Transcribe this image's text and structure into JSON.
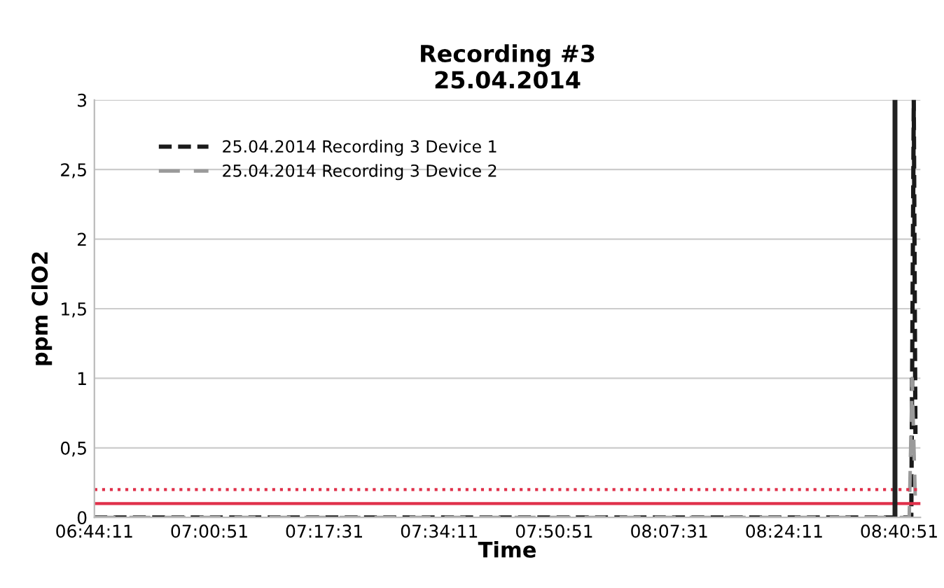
{
  "chart_data": {
    "type": "line",
    "title": "Recording #3\n25.04.2014",
    "xlabel": "Time",
    "ylabel": "ppm ClO2",
    "series": [
      {
        "name": "25.04.2014 Recording 3 Device 1",
        "color": "#1a1a1a",
        "line_style": "dashed",
        "x": [
          6.7364,
          8.71,
          8.716,
          8.72
        ],
        "values": [
          0,
          0,
          3.0,
          0.6
        ]
      },
      {
        "name": "25.04.2014 Recording 3 Device 2",
        "color": "#9a9a9a",
        "line_style": "dashed",
        "x": [
          6.7364,
          8.705,
          8.712,
          8.72
        ],
        "values": [
          0,
          0,
          1.0,
          0.1
        ]
      }
    ],
    "xlim": [
      6.7364,
      8.732
    ],
    "xticks": [
      {
        "value": 6.7364,
        "label": "06:44:11"
      },
      {
        "value": 7.0142,
        "label": "07:00:51"
      },
      {
        "value": 7.2919,
        "label": "07:17:31"
      },
      {
        "value": 7.5697,
        "label": "07:34:11"
      },
      {
        "value": 7.8475,
        "label": "07:50:51"
      },
      {
        "value": 8.1253,
        "label": "08:07:31"
      },
      {
        "value": 8.4031,
        "label": "08:24:11"
      },
      {
        "value": 8.6808,
        "label": "08:40:51"
      }
    ],
    "ylim": [
      0,
      3
    ],
    "yticks": [
      0,
      {
        "value": 0.5,
        "label": "0,5"
      },
      1,
      {
        "value": 1.5,
        "label": "1,5"
      },
      2,
      {
        "value": 2.5,
        "label": "2,5"
      },
      3
    ],
    "ref_lines": [
      {
        "axis": "y",
        "value": 0.2,
        "label": null,
        "color": "#e0304a",
        "line_style": "dotted"
      },
      {
        "axis": "y",
        "value": 0.1,
        "label": null,
        "color": "#e0304a",
        "line_style": "solid"
      },
      {
        "axis": "x",
        "value": 8.6706,
        "label": null,
        "color": "#222222",
        "line_style": "solid"
      }
    ],
    "grid": "y",
    "legend": "top left",
    "marker": "none"
  }
}
